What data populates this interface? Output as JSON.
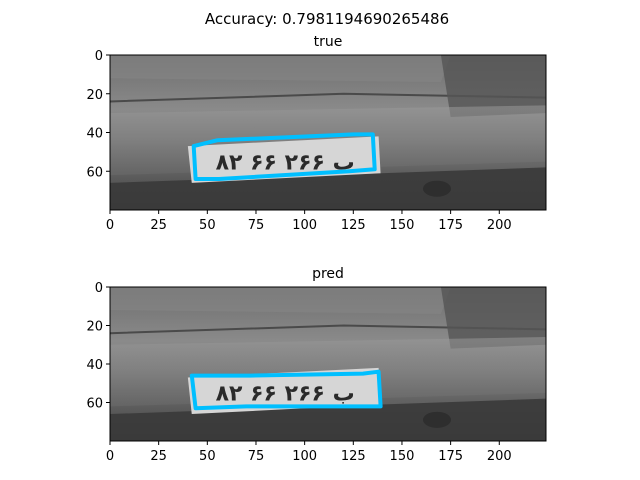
{
  "figure": {
    "suptitle": "Accuracy: 0.7981194690265486"
  },
  "chart_data": [
    {
      "type": "image",
      "title": "true",
      "xlim": [
        0,
        224
      ],
      "ylim": [
        80,
        0
      ],
      "x_ticks": [
        0,
        25,
        50,
        75,
        100,
        125,
        150,
        175,
        200
      ],
      "y_ticks": [
        0,
        20,
        40,
        60
      ],
      "box_color": "#00bfff",
      "box": [
        [
          43,
          47
        ],
        [
          55,
          44
        ],
        [
          125,
          41
        ],
        [
          135,
          41
        ],
        [
          136,
          59
        ],
        [
          123,
          60
        ],
        [
          56,
          64
        ],
        [
          44,
          64
        ]
      ],
      "plate_text": "۸۲ ب ۲۶۶ ۶۶"
    },
    {
      "type": "image",
      "title": "pred",
      "xlim": [
        0,
        224
      ],
      "ylim": [
        80,
        0
      ],
      "x_ticks": [
        0,
        25,
        50,
        75,
        100,
        125,
        150,
        175,
        200
      ],
      "y_ticks": [
        0,
        20,
        40,
        60
      ],
      "box_color": "#00bfff",
      "box": [
        [
          42,
          46
        ],
        [
          72,
          46
        ],
        [
          130,
          45
        ],
        [
          138,
          44
        ],
        [
          139,
          62
        ],
        [
          126,
          62
        ],
        [
          70,
          62
        ],
        [
          44,
          63
        ]
      ],
      "plate_text": "۸۲ ب ۲۶۶ ۶۶"
    }
  ]
}
